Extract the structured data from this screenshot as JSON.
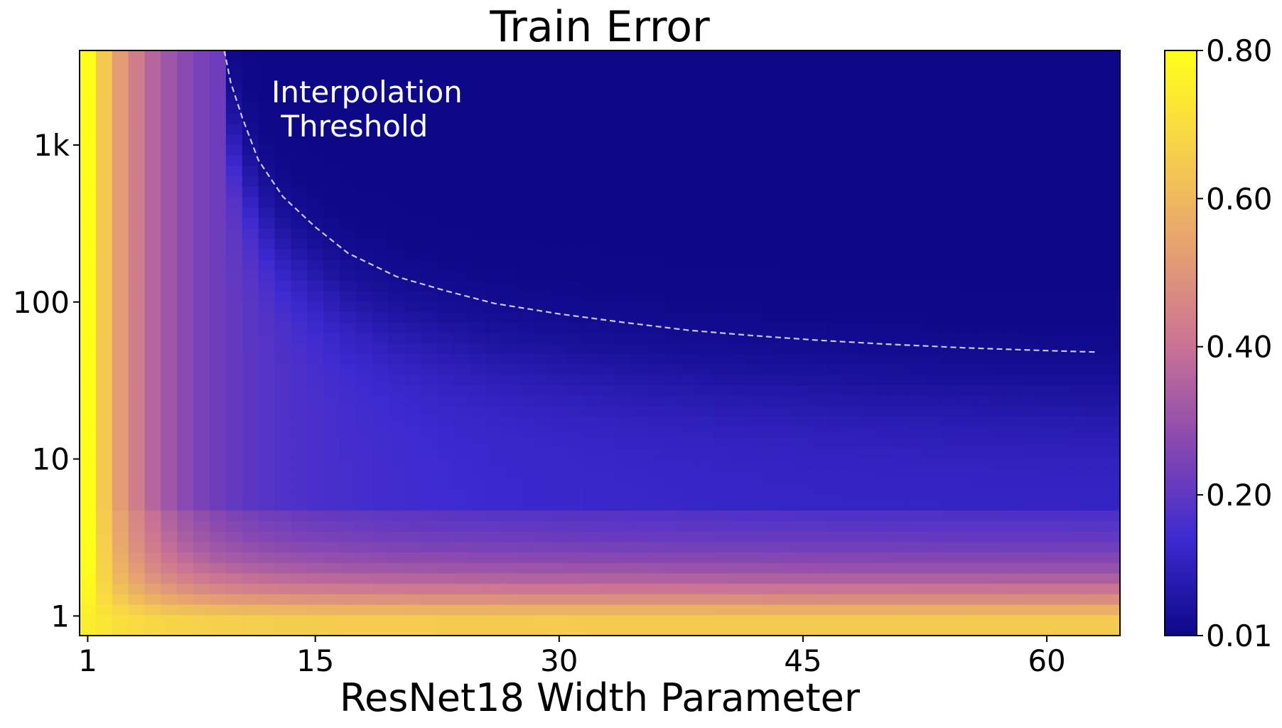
{
  "chart_data": {
    "type": "heatmap",
    "title": "Train Error",
    "xlabel": "ResNet18 Width Parameter",
    "ylabel": "",
    "x": {
      "min": 1,
      "max": 64,
      "ticks": [
        1,
        15,
        30,
        45,
        60
      ],
      "tick_labels": [
        "1",
        "15",
        "30",
        "45",
        "60"
      ]
    },
    "y": {
      "scale": "log",
      "min": 0.75,
      "max": 4000,
      "ticks": [
        1,
        10,
        100,
        1000
      ],
      "tick_labels": [
        "1",
        "10",
        "100",
        "1k"
      ]
    },
    "colorbar": {
      "min": 0.01,
      "max": 0.8,
      "ticks": [
        0.01,
        0.2,
        0.4,
        0.6,
        0.8
      ],
      "tick_labels": [
        "0.01",
        "0.20",
        "0.40",
        "0.60",
        "0.80"
      ],
      "colormap": [
        "#0d0887",
        "#3d2ad0",
        "#8a49b0",
        "#cb7493",
        "#e6a270",
        "#f7d24a",
        "#ffff1a"
      ]
    },
    "annotation": {
      "line1": "Interpolation",
      "line2": " Threshold"
    },
    "interpolation_threshold": [
      {
        "x": 9.4,
        "y": 4000
      },
      {
        "x": 9.8,
        "y": 2500
      },
      {
        "x": 10.5,
        "y": 1500
      },
      {
        "x": 11.5,
        "y": 800
      },
      {
        "x": 13,
        "y": 470
      },
      {
        "x": 15,
        "y": 300
      },
      {
        "x": 17,
        "y": 205
      },
      {
        "x": 20,
        "y": 145
      },
      {
        "x": 23,
        "y": 118
      },
      {
        "x": 26,
        "y": 98
      },
      {
        "x": 30,
        "y": 84
      },
      {
        "x": 34,
        "y": 74
      },
      {
        "x": 38,
        "y": 66
      },
      {
        "x": 42,
        "y": 61
      },
      {
        "x": 46,
        "y": 57
      },
      {
        "x": 50,
        "y": 54
      },
      {
        "x": 55,
        "y": 51
      },
      {
        "x": 60,
        "y": 49
      },
      {
        "x": 63,
        "y": 48
      }
    ]
  }
}
